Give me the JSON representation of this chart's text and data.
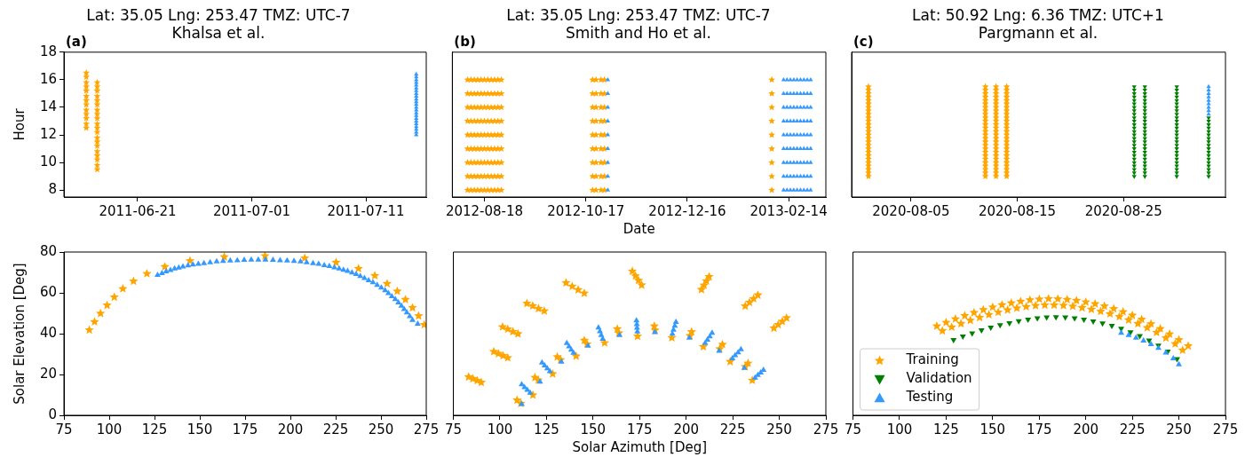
{
  "chart_data": [
    {
      "type": "scatter",
      "title": "Lat: 35.05 Lng: 253.47 TMZ: UTC-7",
      "subtitle": "Khalsa et al.",
      "annotations": [
        "(a)"
      ],
      "ylabel": "Hour",
      "xlim": [
        "2011-06-14T13:00",
        "2011-07-16T07:00"
      ],
      "xticks": [
        "2011-06-21",
        "2011-07-01",
        "2011-07-11"
      ],
      "ylim": [
        7.5,
        18
      ],
      "yticks": [
        8,
        10,
        12,
        14,
        16,
        18
      ],
      "series": [
        {
          "color": "#ffa500",
          "marker": "star",
          "x": [
            "2011-06-16T12:00",
            "2011-06-16T12:00",
            "2011-06-16T12:00",
            "2011-06-16T12:00",
            "2011-06-16T12:00",
            "2011-06-16T12:00",
            "2011-06-16T12:00",
            "2011-06-16T12:00",
            "2011-06-16T12:00",
            "2011-06-16T12:00",
            "2011-06-16T12:00",
            "2011-06-16T12:00",
            "2011-06-16T12:00",
            "2011-06-17T11:00",
            "2011-06-17T11:00",
            "2011-06-17T11:00",
            "2011-06-17T11:00",
            "2011-06-17T11:00",
            "2011-06-17T11:00",
            "2011-06-17T11:00",
            "2011-06-17T11:00",
            "2011-06-17T11:00",
            "2011-06-17T11:00",
            "2011-06-17T11:00",
            "2011-06-17T11:00",
            "2011-06-17T11:00",
            "2011-06-17T11:00",
            "2011-06-17T11:00",
            "2011-06-17T11:00",
            "2011-06-17T11:00",
            "2011-06-17T11:00",
            "2011-06-17T11:00",
            "2011-06-17T11:00"
          ],
          "values": [
            12.5,
            12.8,
            13.2,
            13.5,
            13.8,
            14.2,
            14.5,
            14.8,
            15.2,
            15.5,
            15.8,
            16.2,
            16.5,
            9.5,
            9.8,
            10.2,
            10.5,
            10.8,
            11.2,
            11.5,
            11.8,
            12.2,
            12.5,
            12.8,
            13.2,
            13.5,
            13.8,
            14.2,
            14.5,
            14.8,
            15.2,
            15.5,
            15.8
          ]
        },
        {
          "color": "#3399ff",
          "marker": "triangle",
          "x": [
            "2011-07-15T10:00",
            "2011-07-15T10:00",
            "2011-07-15T10:00",
            "2011-07-15T10:00",
            "2011-07-15T10:00",
            "2011-07-15T10:00",
            "2011-07-15T10:00",
            "2011-07-15T10:00",
            "2011-07-15T10:00",
            "2011-07-15T10:00",
            "2011-07-15T10:00",
            "2011-07-15T10:00",
            "2011-07-15T10:00",
            "2011-07-15T10:00",
            "2011-07-15T10:00",
            "2011-07-15T10:00",
            "2011-07-15T10:00",
            "2011-07-15T10:00",
            "2011-07-15T10:00",
            "2011-07-15T10:00",
            "2011-07-15T10:00",
            "2011-07-15T10:00",
            "2011-07-15T10:00"
          ],
          "values": [
            12,
            12.2,
            12.4,
            12.6,
            12.8,
            13,
            13.2,
            13.4,
            13.6,
            13.8,
            14,
            14.2,
            14.4,
            14.6,
            14.8,
            15,
            15.2,
            15.4,
            15.6,
            15.8,
            16,
            16.2,
            16.4
          ]
        }
      ]
    },
    {
      "type": "scatter",
      "title": "Lat: 35.05 Lng: 253.47 TMZ: UTC-7",
      "subtitle": "Smith and Ho et al.",
      "annotations": [
        "(b)"
      ],
      "xlabel": "Date",
      "xlim": [
        "2012-07-30",
        "2013-03-08"
      ],
      "xticks": [
        "2012-08-18",
        "2012-10-17",
        "2012-12-16",
        "2013-02-14"
      ],
      "ylim": [
        7.5,
        18
      ],
      "yticks": [
        8,
        10,
        12,
        14,
        16,
        18
      ],
      "tick_labels": "x",
      "series": [
        {
          "color": "#ffa500",
          "marker": "star",
          "x": [
            "2012-08-08",
            "2012-08-08",
            "2012-08-08",
            "2012-08-08",
            "2012-08-08",
            "2012-08-08",
            "2012-08-08",
            "2012-08-08",
            "2012-08-08",
            "2012-08-10",
            "2012-08-10",
            "2012-08-10",
            "2012-08-10",
            "2012-08-10",
            "2012-08-10",
            "2012-08-10",
            "2012-08-10",
            "2012-08-10",
            "2012-08-12",
            "2012-08-12",
            "2012-08-12",
            "2012-08-12",
            "2012-08-12",
            "2012-08-12",
            "2012-08-12",
            "2012-08-12",
            "2012-08-12",
            "2012-08-14",
            "2012-08-14",
            "2012-08-14",
            "2012-08-14",
            "2012-08-14",
            "2012-08-14",
            "2012-08-14",
            "2012-08-14",
            "2012-08-14",
            "2012-08-16",
            "2012-08-16",
            "2012-08-16",
            "2012-08-16",
            "2012-08-16",
            "2012-08-16",
            "2012-08-16",
            "2012-08-16",
            "2012-08-16",
            "2012-08-18",
            "2012-08-18",
            "2012-08-18",
            "2012-08-18",
            "2012-08-18",
            "2012-08-18",
            "2012-08-18",
            "2012-08-18",
            "2012-08-18",
            "2012-08-20",
            "2012-08-20",
            "2012-08-20",
            "2012-08-20",
            "2012-08-20",
            "2012-08-20",
            "2012-08-20",
            "2012-08-20",
            "2012-08-20",
            "2012-08-22",
            "2012-08-22",
            "2012-08-22",
            "2012-08-22",
            "2012-08-22",
            "2012-08-22",
            "2012-08-22",
            "2012-08-22",
            "2012-08-22",
            "2012-08-24",
            "2012-08-24",
            "2012-08-24",
            "2012-08-24",
            "2012-08-24",
            "2012-08-24",
            "2012-08-24",
            "2012-08-24",
            "2012-08-24",
            "2012-08-26",
            "2012-08-26",
            "2012-08-26",
            "2012-08-26",
            "2012-08-26",
            "2012-08-26",
            "2012-08-26",
            "2012-08-26",
            "2012-08-26",
            "2012-08-28",
            "2012-08-28",
            "2012-08-28",
            "2012-08-28",
            "2012-08-28",
            "2012-08-28",
            "2012-08-28",
            "2012-08-28",
            "2012-08-28",
            "2012-10-21",
            "2012-10-21",
            "2012-10-21",
            "2012-10-21",
            "2012-10-21",
            "2012-10-21",
            "2012-10-21",
            "2012-10-21",
            "2012-10-21",
            "2012-10-23",
            "2012-10-23",
            "2012-10-23",
            "2012-10-23",
            "2012-10-23",
            "2012-10-23",
            "2012-10-23",
            "2012-10-23",
            "2012-10-23",
            "2012-10-26",
            "2012-10-26",
            "2012-10-26",
            "2012-10-26",
            "2012-10-26",
            "2012-10-26",
            "2012-10-26",
            "2012-10-26",
            "2012-10-26",
            "2012-10-28",
            "2012-10-28",
            "2012-10-28",
            "2012-10-28",
            "2012-10-28",
            "2012-10-28",
            "2012-10-28",
            "2012-10-28",
            "2012-10-28",
            "2013-02-04",
            "2013-02-04",
            "2013-02-04",
            "2013-02-04",
            "2013-02-04",
            "2013-02-04",
            "2013-02-04",
            "2013-02-04",
            "2013-02-04"
          ],
          "values": [
            8,
            9,
            10,
            11,
            12,
            13,
            14,
            15,
            16,
            8,
            9,
            10,
            11,
            12,
            13,
            14,
            15,
            16,
            8,
            9,
            10,
            11,
            12,
            13,
            14,
            15,
            16,
            8,
            9,
            10,
            11,
            12,
            13,
            14,
            15,
            16,
            8,
            9,
            10,
            11,
            12,
            13,
            14,
            15,
            16,
            8,
            9,
            10,
            11,
            12,
            13,
            14,
            15,
            16,
            8,
            9,
            10,
            11,
            12,
            13,
            14,
            15,
            16,
            8,
            9,
            10,
            11,
            12,
            13,
            14,
            15,
            16,
            8,
            9,
            10,
            11,
            12,
            13,
            14,
            15,
            16,
            8,
            9,
            10,
            11,
            12,
            13,
            14,
            15,
            16,
            8,
            9,
            10,
            11,
            12,
            13,
            14,
            15,
            16,
            8,
            9,
            10,
            11,
            12,
            13,
            14,
            15,
            16,
            8,
            9,
            10,
            11,
            12,
            13,
            14,
            15,
            16,
            8,
            9,
            10,
            11,
            12,
            13,
            14,
            15,
            16,
            8,
            9,
            10,
            11,
            12,
            13,
            14,
            15,
            16,
            8,
            9,
            10,
            11,
            12,
            13,
            14,
            15,
            16
          ]
        },
        {
          "color": "#3399ff",
          "marker": "triangle",
          "x": [
            "2012-10-30",
            "2012-10-30",
            "2012-10-30",
            "2012-10-30",
            "2012-10-30",
            "2012-10-30",
            "2012-10-30",
            "2012-10-30",
            "2012-10-30",
            "2013-02-11",
            "2013-02-11",
            "2013-02-11",
            "2013-02-11",
            "2013-02-11",
            "2013-02-11",
            "2013-02-11",
            "2013-02-11",
            "2013-02-11",
            "2013-02-13",
            "2013-02-13",
            "2013-02-13",
            "2013-02-13",
            "2013-02-13",
            "2013-02-13",
            "2013-02-13",
            "2013-02-13",
            "2013-02-13",
            "2013-02-15",
            "2013-02-15",
            "2013-02-15",
            "2013-02-15",
            "2013-02-15",
            "2013-02-15",
            "2013-02-15",
            "2013-02-15",
            "2013-02-15",
            "2013-02-17",
            "2013-02-17",
            "2013-02-17",
            "2013-02-17",
            "2013-02-17",
            "2013-02-17",
            "2013-02-17",
            "2013-02-17",
            "2013-02-17",
            "2013-02-19",
            "2013-02-19",
            "2013-02-19",
            "2013-02-19",
            "2013-02-19",
            "2013-02-19",
            "2013-02-19",
            "2013-02-19",
            "2013-02-19",
            "2013-02-21",
            "2013-02-21",
            "2013-02-21",
            "2013-02-21",
            "2013-02-21",
            "2013-02-21",
            "2013-02-21",
            "2013-02-21",
            "2013-02-21",
            "2013-02-23",
            "2013-02-23",
            "2013-02-23",
            "2013-02-23",
            "2013-02-23",
            "2013-02-23",
            "2013-02-23",
            "2013-02-23",
            "2013-02-23",
            "2013-02-25",
            "2013-02-25",
            "2013-02-25",
            "2013-02-25",
            "2013-02-25",
            "2013-02-25",
            "2013-02-25",
            "2013-02-25",
            "2013-02-25",
            "2013-02-27",
            "2013-02-27",
            "2013-02-27",
            "2013-02-27",
            "2013-02-27",
            "2013-02-27",
            "2013-02-27",
            "2013-02-27",
            "2013-02-27"
          ],
          "values": [
            8,
            9,
            10,
            11,
            12,
            13,
            14,
            15,
            16,
            8,
            9,
            10,
            11,
            12,
            13,
            14,
            15,
            16,
            8,
            9,
            10,
            11,
            12,
            13,
            14,
            15,
            16,
            8,
            9,
            10,
            11,
            12,
            13,
            14,
            15,
            16,
            8,
            9,
            10,
            11,
            12,
            13,
            14,
            15,
            16,
            8,
            9,
            10,
            11,
            12,
            13,
            14,
            15,
            16,
            8,
            9,
            10,
            11,
            12,
            13,
            14,
            15,
            16,
            8,
            9,
            10,
            11,
            12,
            13,
            14,
            15,
            16,
            8,
            9,
            10,
            11,
            12,
            13,
            14,
            15,
            16,
            8,
            9,
            10,
            11,
            12,
            13,
            14,
            15,
            16
          ]
        }
      ]
    },
    {
      "type": "scatter",
      "title": "Lat: 50.92 Lng: 6.36 TMZ: UTC+1",
      "subtitle": "Pargmann et al.",
      "annotations": [
        "(c)"
      ],
      "xlim": [
        "2020-07-30T10:00",
        "2020-09-03T14:00"
      ],
      "xticks": [
        "2020-08-05",
        "2020-08-15",
        "2020-08-25"
      ],
      "ylim": [
        7.5,
        18
      ],
      "yticks": [
        8,
        10,
        12,
        14,
        16,
        18
      ],
      "tick_labels": "x",
      "series": [
        {
          "color": "#ffa500",
          "marker": "star",
          "x": [
            "2020-08-01",
            "2020-08-01",
            "2020-08-01",
            "2020-08-01",
            "2020-08-01",
            "2020-08-01",
            "2020-08-01",
            "2020-08-01",
            "2020-08-01",
            "2020-08-01",
            "2020-08-01",
            "2020-08-01",
            "2020-08-01",
            "2020-08-01",
            "2020-08-01",
            "2020-08-01",
            "2020-08-01",
            "2020-08-01",
            "2020-08-01",
            "2020-08-01",
            "2020-08-01",
            "2020-08-01",
            "2020-08-01",
            "2020-08-01",
            "2020-08-01",
            "2020-08-01",
            "2020-08-01",
            "2020-08-12",
            "2020-08-12",
            "2020-08-12",
            "2020-08-12",
            "2020-08-12",
            "2020-08-12",
            "2020-08-12",
            "2020-08-12",
            "2020-08-12",
            "2020-08-12",
            "2020-08-12",
            "2020-08-12",
            "2020-08-12",
            "2020-08-12",
            "2020-08-12",
            "2020-08-12",
            "2020-08-12",
            "2020-08-12",
            "2020-08-12",
            "2020-08-12",
            "2020-08-12",
            "2020-08-12",
            "2020-08-12",
            "2020-08-12",
            "2020-08-12",
            "2020-08-12",
            "2020-08-12",
            "2020-08-13",
            "2020-08-13",
            "2020-08-13",
            "2020-08-13",
            "2020-08-13",
            "2020-08-13",
            "2020-08-13",
            "2020-08-13",
            "2020-08-13",
            "2020-08-13",
            "2020-08-13",
            "2020-08-13",
            "2020-08-13",
            "2020-08-13",
            "2020-08-13",
            "2020-08-13",
            "2020-08-13",
            "2020-08-13",
            "2020-08-13",
            "2020-08-13",
            "2020-08-13",
            "2020-08-13",
            "2020-08-13",
            "2020-08-13",
            "2020-08-13",
            "2020-08-13",
            "2020-08-13",
            "2020-08-14",
            "2020-08-14",
            "2020-08-14",
            "2020-08-14",
            "2020-08-14",
            "2020-08-14",
            "2020-08-14",
            "2020-08-14",
            "2020-08-14",
            "2020-08-14",
            "2020-08-14",
            "2020-08-14",
            "2020-08-14",
            "2020-08-14",
            "2020-08-14",
            "2020-08-14",
            "2020-08-14",
            "2020-08-14",
            "2020-08-14",
            "2020-08-14",
            "2020-08-14",
            "2020-08-14",
            "2020-08-14",
            "2020-08-14",
            "2020-08-14",
            "2020-08-14",
            "2020-08-14"
          ],
          "values": [
            9,
            9.25,
            9.5,
            9.75,
            10,
            10.25,
            10.5,
            10.75,
            11,
            11.25,
            11.5,
            11.75,
            12,
            12.25,
            12.5,
            12.75,
            13,
            13.25,
            13.5,
            13.75,
            14,
            14.25,
            14.5,
            14.75,
            15,
            15.25,
            15.5,
            9,
            9.25,
            9.5,
            9.75,
            10,
            10.25,
            10.5,
            10.75,
            11,
            11.25,
            11.5,
            11.75,
            12,
            12.25,
            12.5,
            12.75,
            13,
            13.25,
            13.5,
            13.75,
            14,
            14.25,
            14.5,
            14.75,
            15,
            15.25,
            15.5,
            9,
            9.25,
            9.5,
            9.75,
            10,
            10.25,
            10.5,
            10.75,
            11,
            11.25,
            11.5,
            11.75,
            12,
            12.25,
            12.5,
            12.75,
            13,
            13.25,
            13.5,
            13.75,
            14,
            14.25,
            14.5,
            14.75,
            15,
            15.25,
            15.5,
            9,
            9.25,
            9.5,
            9.75,
            10,
            10.25,
            10.5,
            10.75,
            11,
            11.25,
            11.5,
            11.75,
            12,
            12.25,
            12.5,
            12.75,
            13,
            13.25,
            13.5,
            13.75,
            14,
            14.25,
            14.5,
            14.75,
            15,
            15.25,
            15.5
          ]
        },
        {
          "color": "#008000",
          "marker": "triangle_down",
          "x": [
            "2020-08-26",
            "2020-08-26",
            "2020-08-26",
            "2020-08-26",
            "2020-08-26",
            "2020-08-26",
            "2020-08-26",
            "2020-08-26",
            "2020-08-26",
            "2020-08-26",
            "2020-08-26",
            "2020-08-26",
            "2020-08-26",
            "2020-08-26",
            "2020-08-26",
            "2020-08-26",
            "2020-08-26",
            "2020-08-26",
            "2020-08-26",
            "2020-08-26",
            "2020-08-26",
            "2020-08-26",
            "2020-08-26",
            "2020-08-26",
            "2020-08-26",
            "2020-08-26",
            "2020-08-26",
            "2020-08-27",
            "2020-08-27",
            "2020-08-27",
            "2020-08-27",
            "2020-08-27",
            "2020-08-27",
            "2020-08-27",
            "2020-08-27",
            "2020-08-27",
            "2020-08-27",
            "2020-08-27",
            "2020-08-27",
            "2020-08-27",
            "2020-08-27",
            "2020-08-27",
            "2020-08-27",
            "2020-08-27",
            "2020-08-27",
            "2020-08-27",
            "2020-08-27",
            "2020-08-27",
            "2020-08-27",
            "2020-08-27",
            "2020-08-27",
            "2020-08-27",
            "2020-08-27",
            "2020-08-27",
            "2020-08-30",
            "2020-08-30",
            "2020-08-30",
            "2020-08-30",
            "2020-08-30",
            "2020-08-30",
            "2020-08-30",
            "2020-08-30",
            "2020-08-30",
            "2020-08-30",
            "2020-08-30",
            "2020-08-30",
            "2020-08-30",
            "2020-08-30",
            "2020-08-30",
            "2020-08-30",
            "2020-08-30",
            "2020-08-30",
            "2020-08-30",
            "2020-08-30",
            "2020-08-30",
            "2020-08-30",
            "2020-08-30",
            "2020-08-30",
            "2020-08-30",
            "2020-08-30",
            "2020-08-30",
            "2020-09-02",
            "2020-09-02",
            "2020-09-02",
            "2020-09-02",
            "2020-09-02",
            "2020-09-02",
            "2020-09-02",
            "2020-09-02",
            "2020-09-02",
            "2020-09-02",
            "2020-09-02",
            "2020-09-02",
            "2020-09-02",
            "2020-09-02",
            "2020-09-02",
            "2020-09-02",
            "2020-09-02",
            "2020-09-02"
          ],
          "values": [
            9,
            9.25,
            9.5,
            9.75,
            10,
            10.25,
            10.5,
            10.75,
            11,
            11.25,
            11.5,
            11.75,
            12,
            12.25,
            12.5,
            12.75,
            13,
            13.25,
            13.5,
            13.75,
            14,
            14.25,
            14.5,
            14.75,
            15,
            15.25,
            15.5,
            9,
            9.25,
            9.5,
            9.75,
            10,
            10.25,
            10.5,
            10.75,
            11,
            11.25,
            11.5,
            11.75,
            12,
            12.25,
            12.5,
            12.75,
            13,
            13.25,
            13.5,
            13.75,
            14,
            14.25,
            14.5,
            14.75,
            15,
            15.25,
            15.5,
            9,
            9.25,
            9.5,
            9.75,
            10,
            10.25,
            10.5,
            10.75,
            11,
            11.25,
            11.5,
            11.75,
            12,
            12.25,
            12.5,
            12.75,
            13,
            13.25,
            13.5,
            13.75,
            14,
            14.25,
            14.5,
            14.75,
            15,
            15.25,
            15.5,
            9,
            9.25,
            9.5,
            9.75,
            10,
            10.25,
            10.5,
            10.75,
            11,
            11.25,
            11.5,
            11.75,
            12,
            12.25,
            12.5,
            12.75,
            13,
            13.25
          ]
        },
        {
          "color": "#3399ff",
          "marker": "triangle",
          "x": [
            "2020-09-02",
            "2020-09-02",
            "2020-09-02",
            "2020-09-02",
            "2020-09-02",
            "2020-09-02",
            "2020-09-02",
            "2020-09-02",
            "2020-09-02"
          ],
          "values": [
            13.5,
            13.75,
            14,
            14.25,
            14.5,
            14.75,
            15,
            15.25,
            15.5
          ]
        }
      ]
    },
    {
      "type": "scatter",
      "ylabel": "Solar Elevation [Deg]",
      "xlim": [
        75,
        275
      ],
      "xticks": [
        75,
        100,
        125,
        150,
        175,
        200,
        225,
        250,
        275
      ],
      "ylim": [
        0,
        80
      ],
      "yticks": [
        0,
        20,
        40,
        60,
        80
      ],
      "series": [
        {
          "color": "#ffa500",
          "marker": "star",
          "x": [
            89.0,
            91.9,
            95.2,
            98.8,
            102.8,
            107.5,
            113.4,
            120.8,
            130.7,
            144.6,
            163.5,
            186.0,
            207.9,
            225.2,
            237.6,
            246.6,
            253.4,
            259.0,
            263.5,
            267.4,
            270.8,
            273.9
          ],
          "values": [
            41.8,
            45.8,
            49.9,
            53.9,
            57.9,
            62.0,
            65.7,
            69.4,
            72.8,
            75.7,
            77.6,
            78.1,
            77.0,
            74.9,
            71.9,
            68.4,
            64.5,
            60.8,
            56.7,
            52.7,
            48.7,
            44.4
          ]
        },
        {
          "color": "#3399ff",
          "marker": "triangle",
          "x": [
            126.7,
            129.1,
            131.4,
            133.8,
            136.1,
            138.4,
            140.7,
            143.5,
            146.2,
            149.2,
            152.3,
            155.7,
            159.3,
            162.9,
            166.8,
            170.7,
            174.5,
            178.4,
            182.3,
            186.2,
            190.4,
            194.3,
            198.2,
            202.0,
            205.6,
            209.0,
            212.5,
            215.6,
            218.7,
            221.5,
            224.3,
            226.9,
            229.3,
            231.6,
            234.0,
            236.3,
            238.6,
            240.9,
            243.2,
            245.6,
            247.9,
            250.2,
            252.3,
            254.1,
            256.0,
            257.9,
            259.6,
            261.3,
            262.8,
            264.3,
            265.9,
            267.4,
            270.3
          ],
          "values": [
            68.7,
            69.6,
            70.4,
            71.1,
            71.8,
            72.3,
            72.8,
            73.4,
            73.8,
            74.1,
            74.5,
            74.9,
            75.3,
            75.5,
            75.8,
            75.9,
            76.1,
            76.2,
            76.2,
            76.2,
            76.1,
            75.9,
            75.8,
            75.5,
            75.3,
            74.9,
            74.5,
            74.1,
            73.5,
            73.0,
            72.4,
            71.9,
            71.2,
            70.6,
            69.9,
            69.1,
            68.1,
            67.2,
            66.1,
            65.1,
            63.8,
            62.5,
            61.2,
            59.8,
            58.3,
            56.9,
            55.2,
            53.6,
            52.0,
            50.3,
            48.5,
            46.6,
            44.8
          ]
        }
      ]
    },
    {
      "type": "scatter",
      "xlabel": "Solar Azimuth [Deg]",
      "xlim": [
        75,
        275
      ],
      "xticks": [
        75,
        100,
        125,
        150,
        175,
        200,
        225,
        250,
        275
      ],
      "ylim": [
        0,
        80
      ],
      "yticks": [
        0,
        20,
        40,
        60,
        80
      ],
      "tick_labels": "x",
      "series": [
        {
          "color": "#ffa500",
          "marker": "star",
          "x": [
            83.2,
            85.5,
            87.8,
            90.0,
            96.7,
            99.2,
            101.7,
            104.2,
            101.4,
            104.2,
            107.0,
            109.7,
            114.5,
            117.6,
            120.7,
            123.8,
            135.5,
            138.8,
            142.0,
            145.3,
            171.1,
            172.8,
            174.4,
            176.1,
            208.2,
            209.6,
            210.9,
            212.3,
            231.7,
            234.0,
            236.2,
            238.5,
            247.1,
            249.4,
            251.6,
            253.9,
            109.2,
            111.2,
            117.7,
            118.8,
            120.6,
            128.3,
            130.8,
            132.6,
            140.9,
            145.3,
            146.8,
            156.2,
            163.0,
            163.9,
            173.9,
            182.9,
            183.3,
            192.3,
            202.9,
            202.0,
            209.2,
            219.5,
            218.0,
            223.6,
            233.2,
            231.7,
            235.5
          ],
          "values": [
            18.8,
            17.9,
            17.0,
            16.1,
            31.2,
            30.2,
            29.2,
            28.2,
            43.3,
            42.2,
            41.0,
            39.9,
            54.8,
            53.6,
            52.3,
            51.1,
            64.9,
            63.2,
            61.5,
            59.8,
            70.6,
            68.3,
            66.1,
            63.8,
            61.6,
            63.7,
            65.8,
            67.9,
            53.5,
            55.3,
            57.1,
            58.9,
            42.7,
            44.4,
            46.0,
            47.7,
            7.4,
            5.8,
            9.9,
            18.5,
            17.2,
            20.3,
            28.6,
            27.2,
            29.0,
            36.7,
            34.9,
            35.5,
            42.3,
            40.3,
            38.7,
            43.7,
            41.7,
            38.0,
            40.9,
            39.0,
            33.6,
            34.7,
            32.5,
            26.3,
            25.5,
            23.8,
            17.1
          ]
        },
        {
          "color": "#3399ff",
          "marker": "triangle",
          "x": [
            111.7,
            111.7,
            113.2,
            114.7,
            116.2,
            121.5,
            122.6,
            124.0,
            125.4,
            126.8,
            133.0,
            135.9,
            137.1,
            138.3,
            139.5,
            147.3,
            152.9,
            153.7,
            154.4,
            155.2,
            164.2,
            173.3,
            173.5,
            173.6,
            173.8,
            183.2,
            194.5,
            193.9,
            193.2,
            192.6,
            201.7,
            213.9,
            212.7,
            211.4,
            210.2,
            217.7,
            229.4,
            227.9,
            226.3,
            224.8,
            231.2,
            241.5,
            240.0,
            238.5,
            237.0
          ],
          "values": [
            5.4,
            15.1,
            13.7,
            12.4,
            11.0,
            16.4,
            25.8,
            24.4,
            22.9,
            21.5,
            26.2,
            35.3,
            33.7,
            32.1,
            30.5,
            34.0,
            42.9,
            41.1,
            39.2,
            37.4,
            39.2,
            46.4,
            44.6,
            42.8,
            41.0,
            40.6,
            45.7,
            43.8,
            41.8,
            39.9,
            37.9,
            40.3,
            38.6,
            37.0,
            35.3,
            31.5,
            32.3,
            30.8,
            29.3,
            27.8,
            23.1,
            22.2,
            20.9,
            19.7,
            18.4
          ]
        }
      ]
    },
    {
      "type": "scatter",
      "xlim": [
        75,
        275
      ],
      "xticks": [
        75,
        100,
        125,
        150,
        175,
        200,
        225,
        250,
        275
      ],
      "ylim": [
        0,
        80
      ],
      "yticks": [
        0,
        20,
        40,
        60,
        80
      ],
      "tick_labels": "x",
      "legend": "bottom left",
      "series": [
        {
          "name": "Training",
          "color": "#ffa500",
          "marker": "star",
          "x": [
            120,
            125,
            130,
            135,
            140,
            145,
            150,
            155,
            160,
            165,
            170,
            175,
            180,
            185,
            190,
            195,
            200,
            205,
            210,
            215,
            220,
            225,
            230,
            235,
            240,
            245,
            250,
            255,
            123,
            128,
            133,
            138,
            143,
            148,
            153,
            158,
            163,
            168,
            173,
            178,
            183,
            188,
            193,
            198,
            203,
            208,
            213,
            218,
            223,
            228,
            233,
            238,
            243,
            248,
            252
          ],
          "values": [
            43.7,
            45.5,
            47.2,
            48.8,
            50.3,
            51.7,
            53.0,
            54.1,
            55.0,
            55.8,
            56.5,
            56.9,
            57.1,
            57.0,
            56.7,
            56.2,
            55.5,
            54.6,
            53.5,
            52.2,
            50.7,
            49.0,
            47.0,
            44.8,
            42.4,
            39.8,
            37.0,
            34.0,
            41.4,
            43.2,
            44.9,
            46.5,
            47.9,
            49.3,
            50.5,
            51.6,
            52.5,
            53.2,
            53.7,
            54.0,
            54.0,
            53.8,
            53.4,
            52.7,
            51.9,
            50.9,
            49.7,
            48.3,
            46.7,
            44.9,
            42.9,
            40.6,
            37.9,
            35.0,
            31.9
          ]
        },
        {
          "name": "Validation",
          "color": "#008000",
          "marker": "triangle_down",
          "x": [
            129,
            134,
            139,
            144,
            149,
            154,
            159,
            164,
            169,
            174,
            179,
            184,
            189,
            194,
            199,
            204,
            209,
            214,
            219,
            224,
            229,
            234,
            239,
            244,
            249
          ],
          "values": [
            37.0,
            38.7,
            40.2,
            41.7,
            43.0,
            44.2,
            45.2,
            46.2,
            47.0,
            47.6,
            48.0,
            48.1,
            48.0,
            47.6,
            47.0,
            46.1,
            45.1,
            43.9,
            42.5,
            40.8,
            38.9,
            36.7,
            34.2,
            31.3,
            27.6
          ]
        },
        {
          "name": "Testing",
          "color": "#3399ff",
          "marker": "triangle",
          "x": [
            219,
            223,
            227,
            231,
            235,
            239,
            243,
            247,
            250
          ],
          "values": [
            40.3,
            39.2,
            37.9,
            36.5,
            34.8,
            32.9,
            30.6,
            27.8,
            24.9
          ]
        }
      ]
    }
  ]
}
